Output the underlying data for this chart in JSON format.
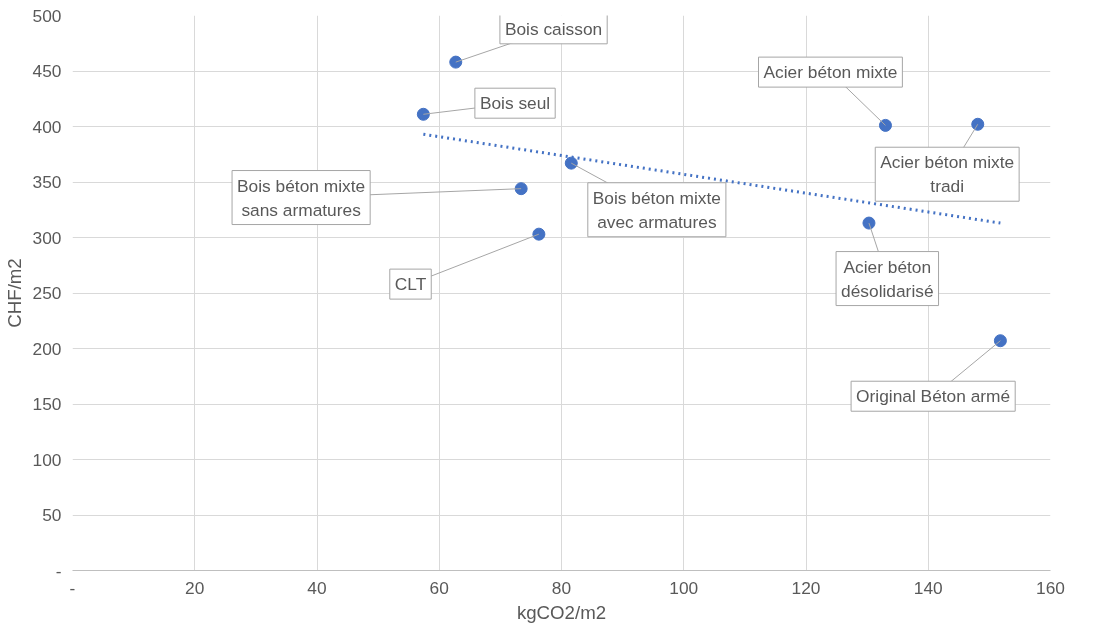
{
  "chart_data": {
    "type": "scatter",
    "xlabel": "kgCO2/m2",
    "ylabel": "CHF/m2",
    "xlim": [
      0,
      160
    ],
    "ylim": [
      0,
      500
    ],
    "xticks": [
      {
        "value": 0,
        "label": "-"
      },
      20,
      40,
      60,
      80,
      100,
      120,
      140,
      160
    ],
    "yticks": [
      {
        "value": 0,
        "label": "-"
      },
      50,
      100,
      150,
      200,
      250,
      300,
      350,
      400,
      450,
      500
    ],
    "grid": true,
    "marker": "circle",
    "series": [
      {
        "color": "#4472c4",
        "x": [
          62.7,
          57.4,
          133.0,
          148.1,
          81.6,
          73.4,
          76.3,
          130.3,
          151.8
        ],
        "values": [
          458,
          411,
          401,
          402,
          367,
          344,
          303,
          313,
          207
        ]
      },
      {
        "type": "line",
        "color": "#4472c4",
        "line_style": "dotted",
        "marker": "none",
        "x": [
          57.4,
          151.8
        ],
        "values": [
          393,
          313
        ]
      }
    ],
    "annotations": [
      {
        "text": "Bois caisson",
        "x": 62.7,
        "y": 458
      },
      {
        "text": "Bois seul",
        "x": 57.4,
        "y": 411
      },
      {
        "text": "Acier béton mixte",
        "x": 133.0,
        "y": 401
      },
      {
        "text": "Acier béton mixte\ntradi",
        "x": 148.1,
        "y": 402
      },
      {
        "text": "Bois béton mixte\navec armatures",
        "x": 81.6,
        "y": 367
      },
      {
        "text": "Bois béton mixte\nsans armatures",
        "x": 73.4,
        "y": 344
      },
      {
        "text": "CLT",
        "x": 76.3,
        "y": 303
      },
      {
        "text": "Acier béton\ndésolidarisé",
        "x": 130.3,
        "y": 313
      },
      {
        "text": "Original Béton armé",
        "x": 151.8,
        "y": 207
      }
    ]
  }
}
